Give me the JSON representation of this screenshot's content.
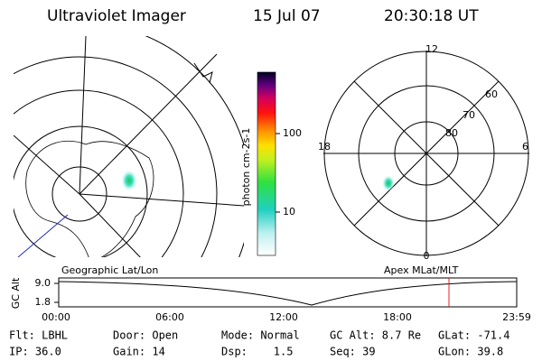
{
  "header": {
    "instrument": "Ultraviolet Imager",
    "date": "15 Jul 07",
    "time": "20:30:18 UT"
  },
  "colorbar": {
    "label": "photon cm-2s-1",
    "ticks": [
      "100",
      "10"
    ]
  },
  "left_panel": {
    "caption": "Geographic Lat/Lon"
  },
  "right_panel": {
    "caption": "Apex MLat/MLT",
    "mlt_labels": [
      "12",
      "18",
      "6",
      "0"
    ],
    "lat_labels": [
      "60",
      "70",
      "80"
    ]
  },
  "altitude_plot": {
    "label": "GC Alt",
    "yticks": [
      "9.0",
      "1.8"
    ],
    "xticks": [
      "00:00",
      "06:00",
      "12:00",
      "18:00",
      "23:59"
    ]
  },
  "footer": {
    "rows": [
      [
        "Flt: LBHL",
        "Door: Open",
        "Mode: Normal",
        "GC Alt: 8.7 Re",
        "GLat: -71.4"
      ],
      [
        "IP: 36.0",
        "Gain: 14",
        "Dsp:    1.5",
        "Seq: 39",
        "GLon: 39.8"
      ]
    ]
  }
}
